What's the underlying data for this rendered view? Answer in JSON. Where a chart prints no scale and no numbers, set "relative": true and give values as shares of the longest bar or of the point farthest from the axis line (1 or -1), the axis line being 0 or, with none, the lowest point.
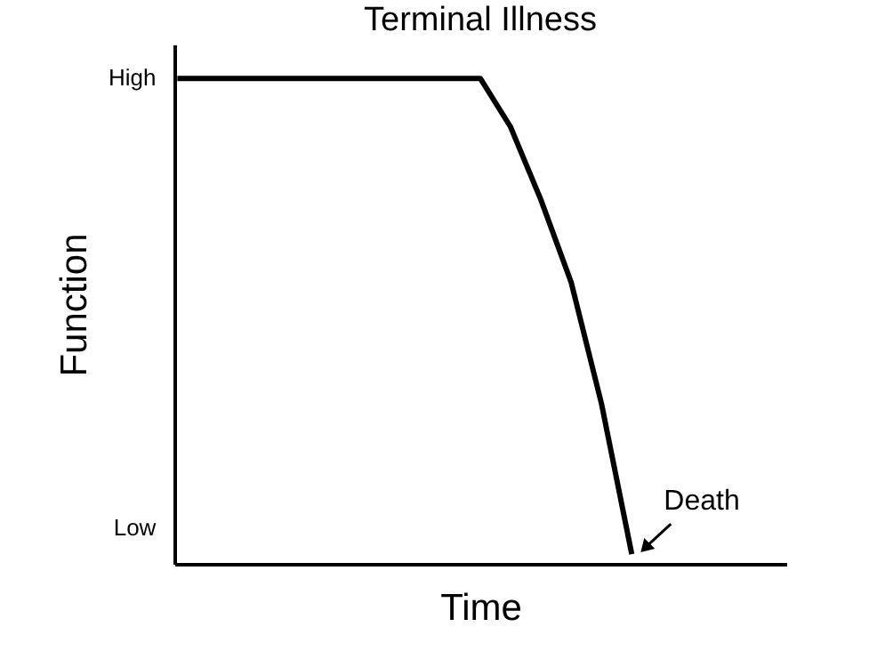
{
  "chart_data": {
    "type": "line",
    "title": "Terminal Illness",
    "xlabel": "Time",
    "ylabel": "Function",
    "categories": [
      null,
      null,
      null,
      null,
      null,
      null,
      null,
      null,
      null,
      null,
      null,
      null,
      null,
      null,
      null,
      null,
      null,
      null,
      null,
      null,
      null
    ],
    "series": [
      {
        "color": "#000000",
        "values": [
          1,
          1,
          1,
          1,
          1,
          1,
          1,
          1,
          1,
          1,
          1,
          0.9,
          0.75,
          0.58,
          0.33,
          0.02,
          null,
          null,
          null,
          null,
          null
        ]
      }
    ],
    "relative": true,
    "grid": false,
    "marker": "none",
    "line_style": "solid",
    "annotations": [
      "High",
      "Low",
      "Death"
    ]
  }
}
